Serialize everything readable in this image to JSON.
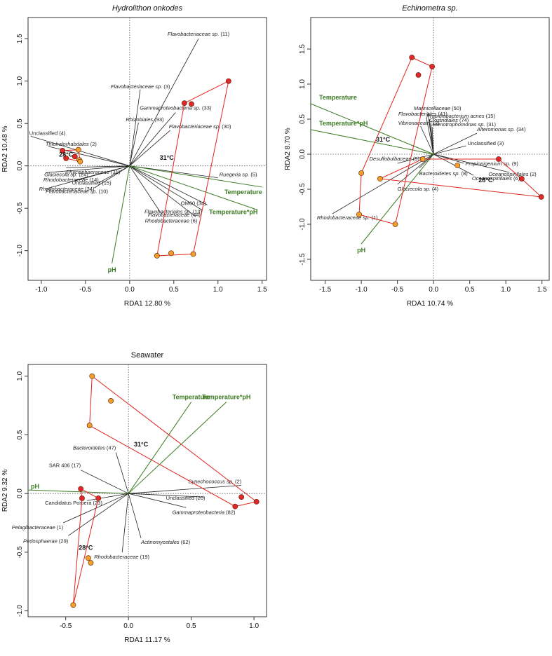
{
  "colors": {
    "env_arrow": "#3a7a22",
    "taxa_line": "#222222",
    "hull": "#e2241c",
    "warm_point": "#e0282a",
    "ambient_point": "#f2a02a",
    "point_edge": "#5a1a00"
  },
  "chart_data": [
    {
      "type": "scatter",
      "title": "Hydrolithon onkodes",
      "title_italic": true,
      "xlabel": "RDA1   12.80 %",
      "ylabel": "RDA2   10.48 %",
      "xlim": [
        -1.15,
        1.55
      ],
      "ylim": [
        -1.35,
        1.75
      ],
      "xticks": [
        -1.0,
        -0.5,
        0.0,
        0.5,
        1.0,
        1.5
      ],
      "yticks": [
        -1.0,
        -0.5,
        0.0,
        0.5,
        1.0,
        1.5
      ],
      "tick_labels_x": [
        "-1.0",
        "-0.5",
        "0.0",
        "0.5",
        "1.0",
        "1.5"
      ],
      "tick_labels_y": [
        "-1.0",
        "-0.5",
        "0.0",
        "0.5",
        "1.0",
        "1.5"
      ],
      "env_arrows": [
        {
          "name": "Temperature",
          "x": 1.5,
          "y": -0.25
        },
        {
          "name": "Temperature*pH",
          "x": 1.45,
          "y": -0.52
        },
        {
          "name": "pH",
          "x": -0.2,
          "y": -1.15
        }
      ],
      "taxa": [
        {
          "name": "Flavobacteriaceae sp. (11)",
          "x": 0.78,
          "y": 1.5
        },
        {
          "name": "Flavobacteriaceae sp. (3)",
          "x": 0.12,
          "y": 0.9
        },
        {
          "name": "Gammaproteobacteria sp. (33)",
          "x": 0.52,
          "y": 0.63
        },
        {
          "name": "Rhizobiales (93)",
          "x": 0.1,
          "y": 0.51
        },
        {
          "name": "Flavobacteriaceae sp. (30)",
          "x": 0.46,
          "y": 0.42
        },
        {
          "name": "Unclassified (4)",
          "x": -1.12,
          "y": 0.35
        },
        {
          "name": "Thiohalorhabdales (2)",
          "x": -0.92,
          "y": 0.23
        },
        {
          "name": "Phycisphaeraceae (31)",
          "x": -0.72,
          "y": -0.02
        },
        {
          "name": "Glaciecola sp. (24)",
          "x": -0.95,
          "y": -0.08
        },
        {
          "name": "Unclassified (15)",
          "x": -0.62,
          "y": -0.17
        },
        {
          "name": "Rhodobacteraceae (14)",
          "x": -0.35,
          "y": -0.2
        },
        {
          "name": "Rhodobacteraceae (34)",
          "x": -0.4,
          "y": -0.26
        },
        {
          "name": "Flavobacteriaceae sp. (10)",
          "x": -0.95,
          "y": -0.27
        },
        {
          "name": "Ruegeria sp. (5)",
          "x": 1.0,
          "y": -0.14
        },
        {
          "name": "OM60 (34)",
          "x": 0.88,
          "y": -0.46
        },
        {
          "name": "Flavobacteriales sp. (13)",
          "x": 0.82,
          "y": -0.52
        },
        {
          "name": "Rhodobacteraceae (6)",
          "x": 0.75,
          "y": -0.6
        },
        {
          "name": "Flavobacteraceae (44)",
          "x": 0.35,
          "y": -0.55
        }
      ],
      "samples": [
        {
          "group": "31°C",
          "x": 1.12,
          "y": 1.0
        },
        {
          "group": "31°C",
          "x": 0.62,
          "y": 0.74
        },
        {
          "group": "31°C",
          "x": 0.7,
          "y": 0.73
        },
        {
          "group": "28°C",
          "x": 0.31,
          "y": -1.06
        },
        {
          "group": "28°C",
          "x": 0.47,
          "y": -1.03
        },
        {
          "group": "28°C",
          "x": 0.72,
          "y": -1.04
        },
        {
          "group": "31°C",
          "x": -0.76,
          "y": 0.18
        },
        {
          "group": "31°C",
          "x": -0.62,
          "y": 0.11
        },
        {
          "group": "31°C",
          "x": -0.72,
          "y": 0.09
        },
        {
          "group": "28°C",
          "x": -0.58,
          "y": 0.19
        },
        {
          "group": "28°C",
          "x": -0.57,
          "y": 0.07
        },
        {
          "group": "28°C",
          "x": -0.56,
          "y": 0.05
        }
      ],
      "hulls": [
        {
          "points": [
            [
              1.12,
              1.0
            ],
            [
              0.72,
              -1.04
            ],
            [
              0.31,
              -1.06
            ],
            [
              0.62,
              0.74
            ]
          ]
        },
        {
          "points": [
            [
              -0.76,
              0.18
            ],
            [
              -0.58,
              0.19
            ],
            [
              -0.56,
              0.05
            ],
            [
              -0.72,
              0.09
            ]
          ]
        }
      ],
      "group_labels": [
        {
          "text": "31°C",
          "x": 0.42,
          "y": 0.07
        },
        {
          "text": "28°C",
          "x": -0.72,
          "y": 0.11
        }
      ]
    },
    {
      "type": "scatter",
      "title": "Echinometra sp.",
      "title_italic": true,
      "xlabel": "RDA1   10.74 %",
      "ylabel": "RDA2   8.70 %",
      "xlim": [
        -1.7,
        1.6
      ],
      "ylim": [
        -1.8,
        1.95
      ],
      "xticks": [
        -1.5,
        -1.0,
        -0.5,
        0.0,
        0.5,
        1.0,
        1.5
      ],
      "yticks": [
        -1.5,
        -1.0,
        -0.5,
        0.0,
        0.5,
        1.0,
        1.5
      ],
      "tick_labels_x": [
        "-1.5",
        "-1.0",
        "-0.5",
        "0.0",
        "0.5",
        "1.0",
        "1.5"
      ],
      "tick_labels_y": [
        "-1.5",
        "-1.0",
        "-0.5",
        "0.0",
        "0.5",
        "1.0",
        "1.5"
      ],
      "env_arrows": [
        {
          "name": "Temperature",
          "x": -1.7,
          "y": 0.72
        },
        {
          "name": "Temperature*pH",
          "x": -1.7,
          "y": 0.35
        },
        {
          "name": "pH",
          "x": -1.0,
          "y": -1.28
        }
      ],
      "taxa": [
        {
          "name": "Marinicellaceae (50)",
          "x": -0.08,
          "y": 0.6
        },
        {
          "name": "Flavobacteriales (41)",
          "x": -0.1,
          "y": 0.52
        },
        {
          "name": "Propionibacterium acnes (15)",
          "x": -0.06,
          "y": 0.5
        },
        {
          "name": "Clostridiales (74)",
          "x": -0.04,
          "y": 0.44
        },
        {
          "name": "Vibrionaceae (12)",
          "x": -0.18,
          "y": 0.4
        },
        {
          "name": "Stenotrophomonas sp. (31)",
          "x": -0.02,
          "y": 0.39
        },
        {
          "name": "Alteromonas sp. (34)",
          "x": 0.6,
          "y": 0.3
        },
        {
          "name": "Unclassified (3)",
          "x": 0.45,
          "y": 0.12
        },
        {
          "name": "Desulfobulbaceae (5)",
          "x": -0.5,
          "y": -0.13
        },
        {
          "name": "Bacteroidetes sp. (8)",
          "x": -0.2,
          "y": -0.2
        },
        {
          "name": "Propionigenium sp. (9)",
          "x": 0.42,
          "y": -0.13
        },
        {
          "name": "Oceanospirillales (2)",
          "x": 1.05,
          "y": -0.26
        },
        {
          "name": "Oceanospirillales (6)",
          "x": 0.55,
          "y": -0.3
        },
        {
          "name": "Glaciecola sp. (4)",
          "x": -0.5,
          "y": -0.43
        },
        {
          "name": "Rhodobacteraceae sp. (1)",
          "x": -1.4,
          "y": -0.85
        }
      ],
      "samples": [
        {
          "group": "31°C",
          "x": -0.3,
          "y": 1.38
        },
        {
          "group": "31°C",
          "x": -0.21,
          "y": 1.13
        },
        {
          "group": "31°C",
          "x": -0.02,
          "y": 1.25
        },
        {
          "group": "28°C",
          "x": -1.0,
          "y": -0.27
        },
        {
          "group": "28°C",
          "x": -0.53,
          "y": -1.0
        },
        {
          "group": "28°C",
          "x": -1.03,
          "y": -0.86
        },
        {
          "group": "28°C",
          "x": -0.74,
          "y": -0.35
        },
        {
          "group": "28°C",
          "x": -0.15,
          "y": -0.07
        },
        {
          "group": "28°C",
          "x": 0.33,
          "y": -0.16
        },
        {
          "group": "31°C",
          "x": 0.9,
          "y": -0.07
        },
        {
          "group": "31°C",
          "x": 1.22,
          "y": -0.35
        },
        {
          "group": "31°C",
          "x": 1.49,
          "y": -0.61
        }
      ],
      "hulls": [
        {
          "points": [
            [
              -0.3,
              1.38
            ],
            [
              -0.02,
              1.25
            ],
            [
              -0.53,
              -1.0
            ],
            [
              -1.03,
              -0.86
            ],
            [
              -1.0,
              -0.27
            ]
          ]
        },
        {
          "points": [
            [
              -0.74,
              -0.35
            ],
            [
              -0.15,
              -0.07
            ],
            [
              0.9,
              -0.07
            ],
            [
              1.22,
              -0.35
            ],
            [
              1.49,
              -0.61
            ]
          ]
        }
      ],
      "group_labels": [
        {
          "text": "31°C",
          "x": -0.7,
          "y": 0.18
        },
        {
          "text": "28°C",
          "x": 0.72,
          "y": -0.4
        }
      ]
    },
    {
      "type": "scatter",
      "title": "Seawater",
      "title_italic": false,
      "xlabel": "RDA1   11.17 %",
      "ylabel": "RDA2   9.32 %",
      "xlim": [
        -0.8,
        1.1
      ],
      "ylim": [
        -1.05,
        1.1
      ],
      "xticks": [
        -0.5,
        0.0,
        0.5,
        1.0
      ],
      "yticks": [
        -1.0,
        -0.5,
        0.0,
        0.5,
        1.0
      ],
      "tick_labels_x": [
        "-0.5",
        "0.0",
        "0.5",
        "1.0"
      ],
      "tick_labels_y": [
        "-1.0",
        "-0.5",
        "0.0",
        "0.5",
        "1.0"
      ],
      "env_arrows": [
        {
          "name": "Temperature",
          "x": 0.5,
          "y": 0.78
        },
        {
          "name": "Temperature*pH",
          "x": 0.78,
          "y": 0.78
        },
        {
          "name": "pH",
          "x": -0.8,
          "y": 0.03
        }
      ],
      "taxa": [
        {
          "name": "Bacteroidetes (47)",
          "x": -0.1,
          "y": 0.35
        },
        {
          "name": "SAR 406 (17)",
          "x": -0.38,
          "y": 0.2
        },
        {
          "name": "Synechococcus sp. (2)",
          "x": 0.9,
          "y": 0.07
        },
        {
          "name": "Unclassified (20)",
          "x": 0.6,
          "y": -0.03
        },
        {
          "name": "Candidatus Portiera (23)",
          "x": -0.33,
          "y": -0.06
        },
        {
          "name": "Gammaproteobacteria (82)",
          "x": 0.46,
          "y": -0.12
        },
        {
          "name": "Pelagibacteraceae (1)",
          "x": -0.52,
          "y": -0.25
        },
        {
          "name": "Pedosphaerae (29)",
          "x": -0.48,
          "y": -0.36
        },
        {
          "name": "Actinomycetales (62)",
          "x": 0.1,
          "y": -0.38
        },
        {
          "name": "Rhodobacteraceae (19)",
          "x": -0.05,
          "y": -0.5
        }
      ],
      "samples": [
        {
          "group": "28°C",
          "x": -0.29,
          "y": 1.0
        },
        {
          "group": "28°C",
          "x": -0.14,
          "y": 0.79
        },
        {
          "group": "28°C",
          "x": -0.31,
          "y": 0.58
        },
        {
          "group": "28°C",
          "x": -0.32,
          "y": -0.55
        },
        {
          "group": "28°C",
          "x": -0.3,
          "y": -0.59
        },
        {
          "group": "28°C",
          "x": -0.44,
          "y": -0.95
        },
        {
          "group": "31°C",
          "x": -0.38,
          "y": 0.04
        },
        {
          "group": "31°C",
          "x": -0.37,
          "y": -0.04
        },
        {
          "group": "31°C",
          "x": -0.24,
          "y": -0.04
        },
        {
          "group": "31°C",
          "x": 0.9,
          "y": -0.03
        },
        {
          "group": "31°C",
          "x": 1.02,
          "y": -0.07
        },
        {
          "group": "31°C",
          "x": 0.85,
          "y": -0.11
        }
      ],
      "hulls": [
        {
          "points": [
            [
              -0.29,
              1.0
            ],
            [
              1.02,
              -0.07
            ],
            [
              0.85,
              -0.11
            ],
            [
              -0.31,
              0.58
            ]
          ]
        },
        {
          "points": [
            [
              -0.38,
              0.04
            ],
            [
              -0.24,
              -0.04
            ],
            [
              -0.44,
              -0.95
            ],
            [
              -0.37,
              -0.04
            ]
          ]
        }
      ],
      "group_labels": [
        {
          "text": "31°C",
          "x": 0.1,
          "y": 0.4
        },
        {
          "text": "28°C",
          "x": -0.34,
          "y": -0.48
        }
      ]
    }
  ]
}
